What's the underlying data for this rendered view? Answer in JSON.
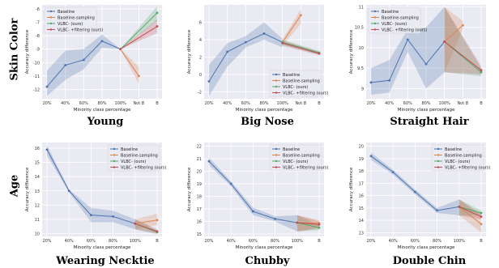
{
  "row_labels": [
    "Skin Color",
    "Age"
  ],
  "captions": [
    "Young",
    "Big Nose",
    "Straight Hair",
    "Wearing Necktie",
    "Chubby",
    "Double Chin"
  ],
  "legend_entries": [
    "Baseline",
    "Baseline-sampling",
    "VLBC- (ours)",
    "VLBC- +filtering (ours)"
  ],
  "colors": {
    "plot_bg": "#eaeaf2",
    "grid": "#ffffff",
    "Baseline": "#4c72b0",
    "Baseline-sampling": "#dd8452",
    "VLBC- (ours)": "#55a868",
    "VLBC- +filtering (ours)": "#c44e52"
  },
  "chart_data": [
    {
      "type": "line",
      "xlabel": "Minority class percentage",
      "ylabel": "Accuracy difference",
      "categories": [
        "20%",
        "40%",
        "60%",
        "80%",
        "100%",
        "Not B",
        "B"
      ],
      "ylim": [
        -12.7,
        -5.7
      ],
      "yticks": [
        -12,
        -11,
        -10,
        -9,
        -8,
        -7,
        -6
      ],
      "legend": "top-left",
      "series": [
        {
          "name": "Baseline",
          "x": [
            0,
            1,
            2,
            3,
            4
          ],
          "values": [
            -11.8,
            -10.2,
            -9.8,
            -8.4,
            -9.0
          ],
          "lower": [
            -12.5,
            -11.3,
            -10.5,
            -8.9,
            -9.0
          ],
          "upper": [
            -10.6,
            -9.1,
            -9.0,
            -7.9,
            -9.0
          ]
        },
        {
          "name": "Baseline-sampling",
          "x": [
            4,
            5
          ],
          "values": [
            -9.0,
            -11.0
          ],
          "lower": [
            -9.0,
            -11.6
          ],
          "upper": [
            -9.0,
            -10.3
          ]
        },
        {
          "name": "VLBC- (ours)",
          "x": [
            4,
            6
          ],
          "values": [
            -9.0,
            -6.3
          ],
          "lower": [
            -9.0,
            -6.9
          ],
          "upper": [
            -9.0,
            -5.8
          ]
        },
        {
          "name": "VLBC- +filtering (ours)",
          "x": [
            4,
            6
          ],
          "values": [
            -9.0,
            -7.3
          ],
          "lower": [
            -9.0,
            -7.8
          ],
          "upper": [
            -9.0,
            -6.8
          ]
        }
      ]
    },
    {
      "type": "line",
      "xlabel": "Minority class percentage",
      "ylabel": "Accuracy difference",
      "categories": [
        "20%",
        "40%",
        "60%",
        "80%",
        "100%",
        "Not B",
        "B"
      ],
      "ylim": [
        -2.8,
        8.0
      ],
      "yticks": [
        -2,
        0,
        2,
        4,
        6
      ],
      "legend": "bottom-right",
      "series": [
        {
          "name": "Baseline",
          "x": [
            0,
            1,
            2,
            3,
            4
          ],
          "values": [
            -0.8,
            2.6,
            3.7,
            4.7,
            3.7
          ],
          "lower": [
            -2.5,
            0.9,
            3.1,
            4.0,
            3.1
          ],
          "upper": [
            1.1,
            3.6,
            4.4,
            6.0,
            4.1
          ]
        },
        {
          "name": "Baseline-sampling",
          "x": [
            4,
            5
          ],
          "values": [
            3.7,
            6.8
          ],
          "lower": [
            3.3,
            5.8
          ],
          "upper": [
            4.0,
            7.5
          ]
        },
        {
          "name": "VLBC- (ours)",
          "x": [
            4,
            6
          ],
          "values": [
            3.7,
            2.5
          ],
          "lower": [
            3.4,
            2.3
          ],
          "upper": [
            4.0,
            2.7
          ]
        },
        {
          "name": "VLBC- +filtering (ours)",
          "x": [
            4,
            6
          ],
          "values": [
            3.6,
            2.4
          ],
          "lower": [
            3.3,
            2.2
          ],
          "upper": [
            3.9,
            2.6
          ]
        }
      ]
    },
    {
      "type": "line",
      "xlabel": "Minority class percentage",
      "ylabel": "Accuracy difference",
      "categories": [
        "20%",
        "40%",
        "60%",
        "80%",
        "100%",
        "Not B",
        "B"
      ],
      "ylim": [
        8.75,
        11.05
      ],
      "yticks": [
        9.0,
        9.5,
        10.0,
        10.5,
        11.0
      ],
      "legend": "top-left",
      "series": [
        {
          "name": "Baseline",
          "x": [
            0,
            1,
            2,
            3,
            4
          ],
          "values": [
            9.15,
            9.2,
            10.2,
            9.6,
            10.15
          ],
          "lower": [
            8.85,
            8.9,
            9.9,
            9.0,
            9.4
          ],
          "upper": [
            9.5,
            9.7,
            10.45,
            10.5,
            11.0
          ]
        },
        {
          "name": "Baseline-sampling",
          "x": [
            4,
            5
          ],
          "values": [
            10.15,
            10.55
          ],
          "lower": [
            9.4,
            10.45
          ],
          "upper": [
            11.0,
            10.65
          ]
        },
        {
          "name": "VLBC- (ours)",
          "x": [
            4,
            6
          ],
          "values": [
            10.15,
            9.4
          ],
          "lower": [
            9.4,
            9.3
          ],
          "upper": [
            11.0,
            9.5
          ]
        },
        {
          "name": "VLBC- +filtering (ours)",
          "x": [
            4,
            6
          ],
          "values": [
            10.15,
            9.45
          ],
          "lower": [
            9.4,
            9.35
          ],
          "upper": [
            11.0,
            9.55
          ]
        }
      ]
    },
    {
      "type": "line",
      "xlabel": "Minority class percentage",
      "ylabel": "Accuracy difference",
      "categories": [
        "20%",
        "40%",
        "60%",
        "80%",
        "100%",
        "B"
      ],
      "ylim": [
        9.8,
        16.4
      ],
      "yticks": [
        10,
        11,
        12,
        13,
        14,
        15,
        16
      ],
      "legend": "top-right",
      "series": [
        {
          "name": "Baseline",
          "x": [
            0,
            1,
            2,
            3,
            4
          ],
          "values": [
            15.9,
            13.0,
            11.3,
            11.2,
            10.7
          ],
          "lower": [
            15.5,
            12.9,
            10.8,
            10.8,
            10.3
          ],
          "upper": [
            16.2,
            13.1,
            11.8,
            11.6,
            11.0
          ]
        },
        {
          "name": "Baseline-sampling",
          "x": [
            4,
            5
          ],
          "values": [
            10.7,
            10.95
          ],
          "lower": [
            10.3,
            10.6
          ],
          "upper": [
            11.0,
            11.4
          ]
        },
        {
          "name": "VLBC- (ours)",
          "x": [
            4,
            5
          ],
          "values": [
            10.7,
            10.1
          ],
          "lower": [
            10.3,
            9.95
          ],
          "upper": [
            11.0,
            10.25
          ]
        },
        {
          "name": "VLBC- +filtering (ours)",
          "x": [
            4,
            5
          ],
          "values": [
            10.7,
            10.15
          ],
          "lower": [
            10.3,
            10.0
          ],
          "upper": [
            11.0,
            10.3
          ]
        }
      ]
    },
    {
      "type": "line",
      "xlabel": "Minority class percentage",
      "ylabel": "Accuracy difference",
      "categories": [
        "20%",
        "40%",
        "60%",
        "80%",
        "100%",
        "B"
      ],
      "ylim": [
        14.8,
        22.3
      ],
      "yticks": [
        15,
        16,
        17,
        18,
        19,
        20,
        21,
        22
      ],
      "legend": "top-right",
      "series": [
        {
          "name": "Baseline",
          "x": [
            0,
            1,
            2,
            3,
            4
          ],
          "values": [
            20.8,
            19.0,
            16.8,
            16.2,
            15.9
          ],
          "lower": [
            20.5,
            18.8,
            16.5,
            16.0,
            15.2
          ],
          "upper": [
            21.1,
            19.2,
            17.1,
            16.4,
            16.5
          ]
        },
        {
          "name": "Baseline-sampling",
          "x": [
            4,
            5
          ],
          "values": [
            15.9,
            15.85
          ],
          "lower": [
            15.2,
            15.4
          ],
          "upper": [
            16.5,
            16.1
          ]
        },
        {
          "name": "VLBC- (ours)",
          "x": [
            4,
            5
          ],
          "values": [
            15.9,
            15.5
          ],
          "lower": [
            15.2,
            15.3
          ],
          "upper": [
            16.5,
            15.7
          ]
        },
        {
          "name": "VLBC- +filtering (ours)",
          "x": [
            4,
            5
          ],
          "values": [
            15.9,
            15.75
          ],
          "lower": [
            15.2,
            15.5
          ],
          "upper": [
            16.5,
            16.0
          ]
        }
      ]
    },
    {
      "type": "line",
      "xlabel": "Minority class percentage",
      "ylabel": "Accuracy difference",
      "categories": [
        "20%",
        "40%",
        "60%",
        "80%",
        "100%",
        "B"
      ],
      "ylim": [
        12.7,
        20.3
      ],
      "yticks": [
        13,
        14,
        15,
        16,
        17,
        18,
        19,
        20
      ],
      "legend": "top-right",
      "series": [
        {
          "name": "Baseline",
          "x": [
            0,
            1,
            2,
            3,
            4
          ],
          "values": [
            19.2,
            17.9,
            16.3,
            14.8,
            15.1
          ],
          "lower": [
            18.9,
            17.7,
            16.1,
            14.6,
            14.4
          ],
          "upper": [
            19.5,
            18.1,
            16.5,
            15.0,
            15.7
          ]
        },
        {
          "name": "Baseline-sampling",
          "x": [
            4,
            5
          ],
          "values": [
            15.1,
            13.7
          ],
          "lower": [
            14.4,
            13.0
          ],
          "upper": [
            15.7,
            14.4
          ]
        },
        {
          "name": "VLBC- (ours)",
          "x": [
            4,
            5
          ],
          "values": [
            15.1,
            14.6
          ],
          "lower": [
            14.4,
            14.4
          ],
          "upper": [
            15.7,
            14.8
          ]
        },
        {
          "name": "VLBC- +filtering (ours)",
          "x": [
            4,
            5
          ],
          "values": [
            15.1,
            14.3
          ],
          "lower": [
            14.4,
            14.1
          ],
          "upper": [
            15.7,
            14.5
          ]
        }
      ]
    }
  ]
}
